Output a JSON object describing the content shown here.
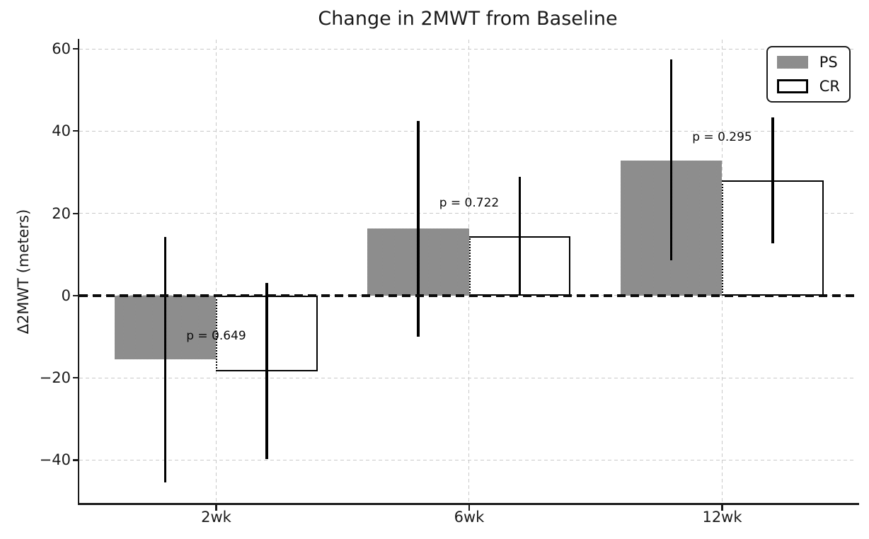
{
  "chart_data": {
    "type": "bar",
    "title": "Change in 2MWT from Baseline",
    "xlabel": "",
    "ylabel": "Δ2MWT (meters)",
    "categories": [
      "2wk",
      "6wk",
      "12wk"
    ],
    "series": [
      {
        "name": "PS",
        "values": [
          -15.5,
          16.3,
          32.9
        ],
        "err_low": [
          -45.5,
          -10.0,
          8.5
        ],
        "err_high": [
          14.3,
          42.4,
          57.4
        ],
        "fill": "#8b8b8b",
        "edge": "none"
      },
      {
        "name": "CR",
        "values": [
          -18.4,
          14.4,
          28.1
        ],
        "err_low": [
          -39.7,
          0.3,
          12.8
        ],
        "err_high": [
          3.1,
          28.8,
          43.3
        ],
        "fill": "#ffffff",
        "edge": "#000000"
      }
    ],
    "p_values": [
      {
        "label": "p = 0.649",
        "y": -9.8
      },
      {
        "label": "p = 0.722",
        "y": 22.5
      },
      {
        "label": "p = 0.295",
        "y": 38.5
      }
    ],
    "yticks": [
      60,
      40,
      20,
      0,
      -20,
      -40
    ],
    "ytick_labels": [
      "60",
      "40",
      "20",
      "0",
      "−20",
      "−40"
    ],
    "ylim": [
      -50.75,
      62.25
    ],
    "grid": true,
    "zero_line": true,
    "legend_position": "upper right",
    "colors": {
      "bar_gray": "#8b8b8b",
      "bar_white": "#ffffff",
      "error": "#000000",
      "grid": "#c9c9c9",
      "axis": "#1a1a1a",
      "zero": "#0b0b0b"
    }
  }
}
